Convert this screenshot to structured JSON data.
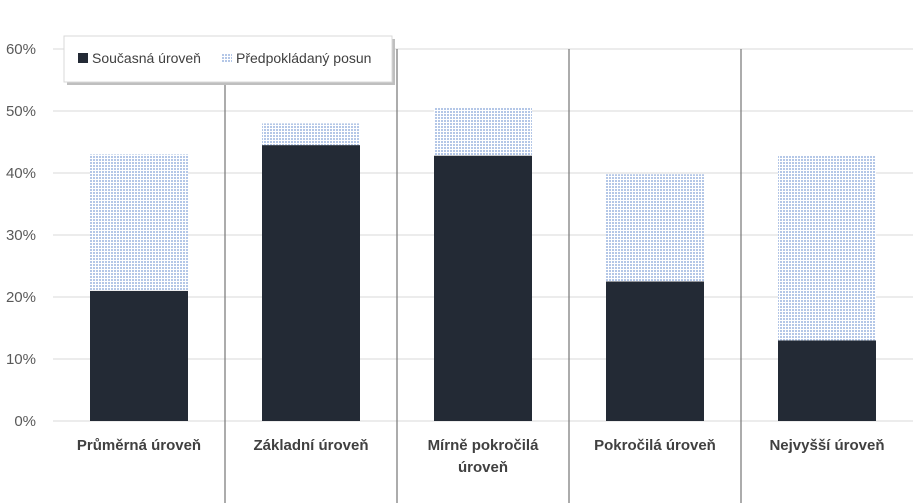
{
  "chart_data": {
    "type": "bar",
    "stacked": true,
    "categories": [
      [
        "Průměrná úroveň"
      ],
      [
        "Základní úroveň"
      ],
      [
        "Mírně pokročilá",
        "úroveň"
      ],
      [
        "Pokročilá úroveň"
      ],
      [
        "Nejvyšší úroveň"
      ]
    ],
    "series": [
      {
        "name": "Současná úroveň",
        "values": [
          21,
          44.5,
          42.8,
          22.5,
          13
        ],
        "color": "#232a35",
        "pattern": "solid"
      },
      {
        "name": "Předpokládaný posun",
        "values": [
          22,
          3.5,
          7.8,
          17.3,
          29.8
        ],
        "color": "#b4c7e7",
        "pattern": "dotted"
      }
    ],
    "y_ticks": [
      "0%",
      "10%",
      "20%",
      "30%",
      "40%",
      "50%",
      "60%"
    ],
    "ylim": [
      0,
      60
    ],
    "y_unit": "%",
    "grid": true,
    "legend_position": "top-left",
    "title": "",
    "xlabel": "",
    "ylabel": ""
  }
}
